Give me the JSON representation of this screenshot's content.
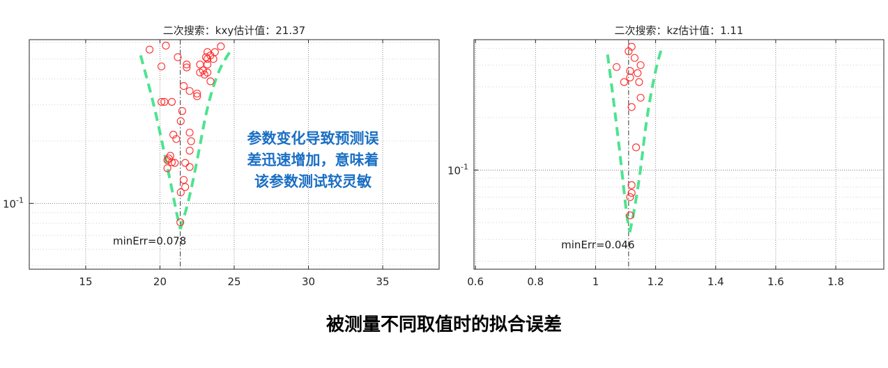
{
  "chart_data": [
    {
      "type": "scatter",
      "title": "二次搜索：kxy估计值：21.37",
      "xlabel": "",
      "ylabel": "",
      "xlim": [
        11.2,
        38.8
      ],
      "ylog": true,
      "ylim": [
        0.048,
        0.62
      ],
      "x_ticks": [
        15,
        20,
        25,
        30,
        35
      ],
      "y_ticks": [
        {
          "value": 0.1,
          "base": "10",
          "exp": "-1"
        }
      ],
      "grid": true,
      "estimate_x": 21.37,
      "min_err": 0.078,
      "min_err_label": "minErr=0.078",
      "curve_color": "#4ee38f",
      "marker_color": "#ff2a2a",
      "fit_curve": {
        "left": [
          [
            18.7,
            0.52
          ],
          [
            19.6,
            0.3
          ],
          [
            20.3,
            0.175
          ],
          [
            20.8,
            0.118
          ],
          [
            21.1,
            0.091
          ],
          [
            21.37,
            0.075
          ]
        ],
        "right": [
          [
            21.37,
            0.075
          ],
          [
            21.9,
            0.1
          ],
          [
            22.5,
            0.16
          ],
          [
            23.2,
            0.3
          ],
          [
            24.0,
            0.45
          ],
          [
            24.7,
            0.54
          ]
        ]
      },
      "points": [
        [
          19.3,
          0.555
        ],
        [
          20.4,
          0.58
        ],
        [
          21.2,
          0.51
        ],
        [
          20.1,
          0.46
        ],
        [
          21.8,
          0.47
        ],
        [
          21.8,
          0.455
        ],
        [
          21.6,
          0.37
        ],
        [
          22.0,
          0.35
        ],
        [
          22.5,
          0.33
        ],
        [
          22.5,
          0.34
        ],
        [
          22.7,
          0.47
        ],
        [
          22.7,
          0.43
        ],
        [
          23.0,
          0.42
        ],
        [
          22.9,
          0.44
        ],
        [
          23.2,
          0.43
        ],
        [
          23.4,
          0.39
        ],
        [
          23.2,
          0.47
        ],
        [
          23.2,
          0.5
        ],
        [
          23.4,
          0.52
        ],
        [
          23.6,
          0.5
        ],
        [
          23.7,
          0.54
        ],
        [
          24.1,
          0.575
        ],
        [
          23.1,
          0.51
        ],
        [
          23.2,
          0.54
        ],
        [
          20.1,
          0.31
        ],
        [
          20.3,
          0.31
        ],
        [
          20.8,
          0.31
        ],
        [
          21.5,
          0.28
        ],
        [
          21.4,
          0.25
        ],
        [
          22.0,
          0.22
        ],
        [
          20.9,
          0.215
        ],
        [
          21.1,
          0.205
        ],
        [
          22.1,
          0.2
        ],
        [
          22.0,
          0.18
        ],
        [
          20.6,
          0.165
        ],
        [
          20.7,
          0.17
        ],
        [
          20.5,
          0.162
        ],
        [
          20.8,
          0.158
        ],
        [
          21.0,
          0.157
        ],
        [
          21.7,
          0.157
        ],
        [
          20.5,
          0.148
        ],
        [
          22.0,
          0.15
        ],
        [
          21.6,
          0.13
        ],
        [
          21.7,
          0.12
        ],
        [
          21.4,
          0.113
        ],
        [
          21.37,
          0.081
        ]
      ]
    },
    {
      "type": "scatter",
      "title": "二次搜索：kz估计值：1.11",
      "xlabel": "",
      "ylabel": "",
      "xlim": [
        0.595,
        1.96
      ],
      "ylog": true,
      "ylim": [
        0.027,
        0.56
      ],
      "x_ticks": [
        0.6,
        0.8,
        1,
        1.2,
        1.4,
        1.6,
        1.8
      ],
      "x_tick_labels": [
        "0.6",
        "0.8",
        "1",
        "1.2",
        "1.4",
        "1.6",
        "1.8"
      ],
      "y_ticks": [
        {
          "value": 0.1,
          "base": "10",
          "exp": "-1"
        }
      ],
      "grid": true,
      "estimate_x": 1.11,
      "min_err": 0.046,
      "min_err_label": "minErr=0.046",
      "curve_color": "#4ee38f",
      "marker_color": "#ff2a2a",
      "fit_curve": {
        "left": [
          [
            1.04,
            0.46
          ],
          [
            1.06,
            0.25
          ],
          [
            1.08,
            0.13
          ],
          [
            1.095,
            0.075
          ],
          [
            1.105,
            0.053
          ],
          [
            1.114,
            0.044
          ]
        ],
        "right": [
          [
            1.114,
            0.044
          ],
          [
            1.13,
            0.06
          ],
          [
            1.15,
            0.1
          ],
          [
            1.17,
            0.2
          ],
          [
            1.2,
            0.38
          ],
          [
            1.22,
            0.5
          ]
        ]
      },
      "points": [
        [
          1.12,
          0.51
        ],
        [
          1.11,
          0.48
        ],
        [
          1.13,
          0.44
        ],
        [
          1.15,
          0.4
        ],
        [
          1.07,
          0.39
        ],
        [
          1.115,
          0.37
        ],
        [
          1.14,
          0.36
        ],
        [
          1.115,
          0.34
        ],
        [
          1.095,
          0.32
        ],
        [
          1.145,
          0.32
        ],
        [
          1.15,
          0.26
        ],
        [
          1.12,
          0.23
        ],
        [
          1.135,
          0.135
        ],
        [
          1.12,
          0.082
        ],
        [
          1.12,
          0.074
        ],
        [
          1.115,
          0.07
        ],
        [
          1.115,
          0.055
        ]
      ]
    }
  ],
  "note": {
    "lines": [
      "参数变化导致预测误",
      "差迅速增加，意味着",
      "该参数测试较灵敏"
    ],
    "color": "#1a6fc4"
  },
  "caption": "被测量不同取值时的拟合误差"
}
